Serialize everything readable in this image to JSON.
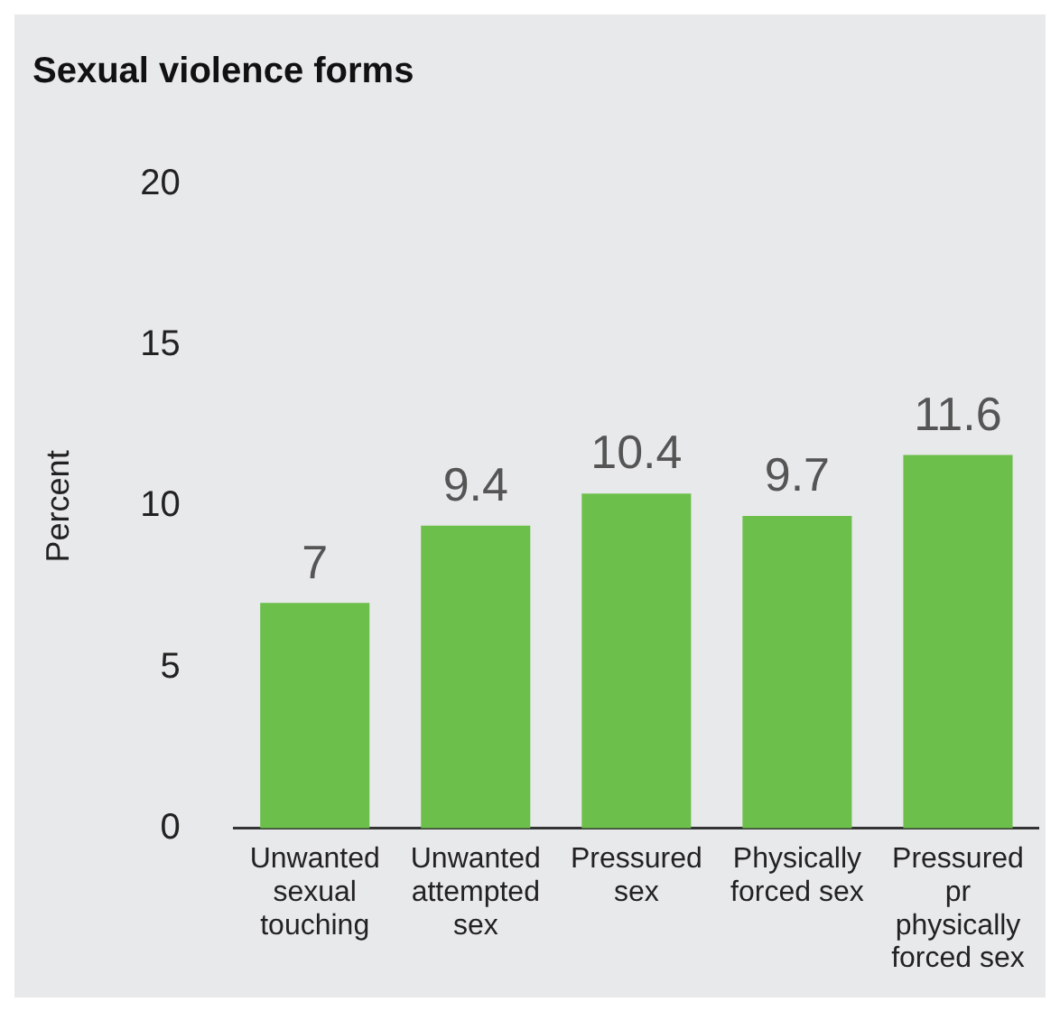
{
  "chart_data": {
    "type": "bar",
    "title": "Sexual violence forms",
    "ylabel": "Percent",
    "categories": [
      "Unwanted sexual touching",
      "Unwanted attempted sex",
      "Pressured sex",
      "Physically forced sex",
      "Pressured pr physically forced sex"
    ],
    "values": [
      7,
      9.4,
      10.4,
      9.7,
      11.6
    ],
    "color": "#6dbf4b",
    "ylim": [
      0,
      20
    ],
    "yticks": [
      0,
      5,
      10,
      15,
      20
    ],
    "grid": false,
    "legend": false,
    "data_labels": true
  }
}
